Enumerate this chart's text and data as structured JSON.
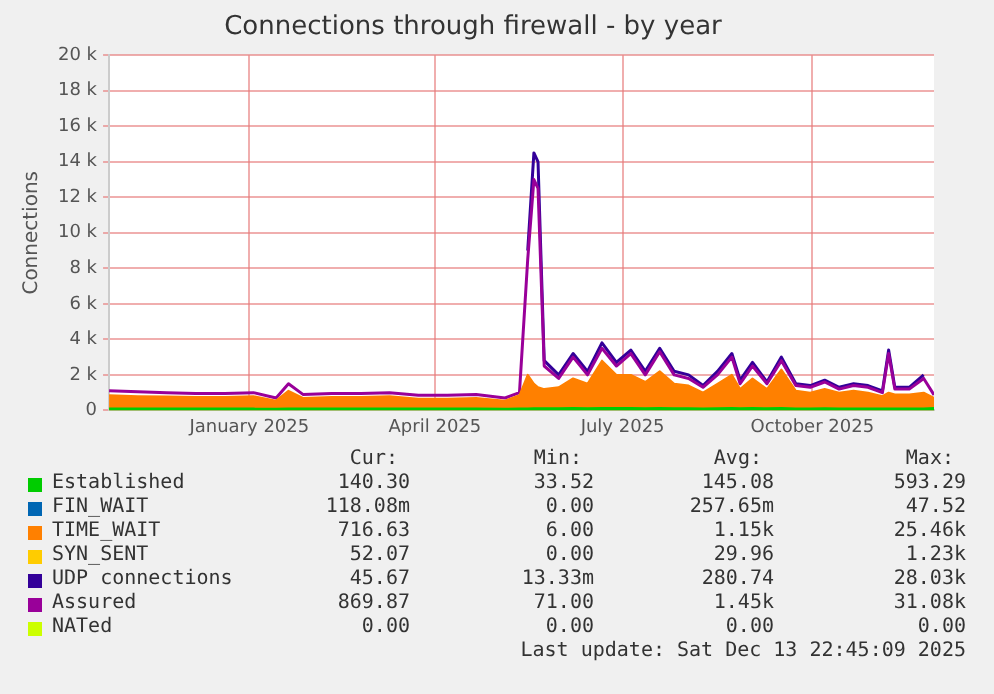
{
  "chart_data": {
    "type": "area",
    "title": "Connections through firewall - by year",
    "ylabel": "Connections",
    "x": [
      "2024-11-08",
      "2024-11-22",
      "2024-12-06",
      "2024-12-20",
      "2025-01-03",
      "2025-01-17",
      "2025-01-28",
      "2025-02-03",
      "2025-02-10",
      "2025-02-24",
      "2025-03-10",
      "2025-03-24",
      "2025-04-07",
      "2025-04-21",
      "2025-05-05",
      "2025-05-19",
      "2025-05-26",
      "2025-05-30",
      "2025-06-02",
      "2025-06-04",
      "2025-06-07",
      "2025-06-14",
      "2025-06-21",
      "2025-06-28",
      "2025-07-05",
      "2025-07-12",
      "2025-07-19",
      "2025-07-26",
      "2025-08-02",
      "2025-08-09",
      "2025-08-16",
      "2025-08-23",
      "2025-08-30",
      "2025-09-06",
      "2025-09-10",
      "2025-09-16",
      "2025-09-23",
      "2025-09-30",
      "2025-10-07",
      "2025-10-14",
      "2025-10-21",
      "2025-10-28",
      "2025-11-04",
      "2025-11-11",
      "2025-11-18",
      "2025-11-21",
      "2025-11-24",
      "2025-12-01",
      "2025-12-08",
      "2025-12-13"
    ],
    "series": [
      {
        "name": "Established",
        "color": "#00cc00",
        "values": [
          100,
          100,
          100,
          100,
          100,
          100,
          90,
          110,
          100,
          100,
          100,
          100,
          100,
          100,
          100,
          90,
          100,
          110,
          120,
          120,
          120,
          120,
          130,
          120,
          130,
          130,
          130,
          120,
          130,
          120,
          120,
          110,
          120,
          130,
          120,
          130,
          120,
          130,
          110,
          110,
          120,
          110,
          110,
          110,
          100,
          110,
          100,
          100,
          110,
          140
        ]
      },
      {
        "name": "FIN_WAIT",
        "color": "#0066b3",
        "values": [
          null,
          null,
          null,
          null,
          null,
          null,
          null,
          null,
          null,
          null,
          null,
          null,
          null,
          null,
          null,
          null,
          null,
          null,
          null,
          null,
          null,
          null,
          null,
          null,
          null,
          null,
          null,
          null,
          null,
          null,
          null,
          null,
          null,
          null,
          null,
          null,
          null,
          null,
          null,
          null,
          null,
          null,
          null,
          null,
          null,
          null,
          null,
          null,
          null,
          null
        ]
      },
      {
        "name": "TIME_WAIT",
        "color": "#ff8000",
        "values": [
          850,
          800,
          780,
          750,
          750,
          800,
          550,
          1100,
          700,
          750,
          750,
          800,
          650,
          650,
          700,
          550,
          850,
          2000,
          1500,
          1300,
          1200,
          1300,
          1800,
          1500,
          2800,
          2000,
          2000,
          1600,
          2200,
          1500,
          1400,
          1000,
          1500,
          2000,
          1200,
          1800,
          1200,
          2300,
          1100,
          1000,
          1200,
          1000,
          1100,
          1000,
          800,
          1000,
          900,
          900,
          1000,
          700
        ]
      },
      {
        "name": "SYN_SENT",
        "color": "#ffcc00",
        "values": [
          null,
          null,
          null,
          null,
          null,
          null,
          null,
          null,
          null,
          null,
          null,
          null,
          null,
          null,
          null,
          null,
          null,
          null,
          null,
          null,
          null,
          null,
          null,
          null,
          null,
          null,
          null,
          null,
          null,
          null,
          null,
          null,
          null,
          null,
          null,
          null,
          null,
          null,
          null,
          null,
          null,
          null,
          null,
          null,
          null,
          null,
          null,
          null,
          null,
          null
        ]
      },
      {
        "name": "UDP connections",
        "color": "#330099",
        "type": "line",
        "values": [
          null,
          null,
          null,
          null,
          null,
          null,
          null,
          null,
          null,
          null,
          null,
          null,
          null,
          null,
          null,
          null,
          null,
          9000,
          14500,
          14000,
          2800,
          2000,
          3200,
          2200,
          3800,
          2700,
          3400,
          2200,
          3500,
          2200,
          2000,
          1400,
          2200,
          3200,
          1700,
          2700,
          1600,
          3000,
          1500,
          1400,
          1700,
          1300,
          1500,
          1400,
          1100,
          3400,
          1300,
          1300,
          2000,
          null
        ]
      },
      {
        "name": "Assured",
        "color": "#990099",
        "type": "line",
        "values": [
          1100,
          1050,
          1000,
          950,
          950,
          1000,
          700,
          1500,
          900,
          950,
          950,
          1000,
          850,
          850,
          900,
          700,
          1000,
          8500,
          13000,
          12500,
          2500,
          1800,
          3000,
          2000,
          3500,
          2500,
          3200,
          2000,
          3300,
          2000,
          1800,
          1300,
          2000,
          3000,
          1500,
          2500,
          1500,
          2800,
          1400,
          1300,
          1600,
          1200,
          1400,
          1300,
          1000,
          3200,
          1200,
          1200,
          1800,
          870
        ]
      },
      {
        "name": "NATed",
        "color": "#ccff00",
        "values": [
          null,
          null,
          null,
          null,
          null,
          null,
          null,
          null,
          null,
          null,
          null,
          null,
          null,
          null,
          null,
          null,
          null,
          null,
          null,
          null,
          null,
          null,
          null,
          null,
          null,
          null,
          null,
          null,
          null,
          null,
          null,
          null,
          null,
          null,
          null,
          null,
          null,
          null,
          null,
          null,
          null,
          null,
          null,
          null,
          null,
          null,
          null,
          null,
          null,
          null
        ]
      }
    ],
    "xlim": [
      "2024-11-08",
      "2025-12-13"
    ],
    "xticks": [
      {
        "value": "2025-01-15",
        "label": "January 2025"
      },
      {
        "value": "2025-04-15",
        "label": "April 2025"
      },
      {
        "value": "2025-07-15",
        "label": "July 2025"
      },
      {
        "value": "2025-10-15",
        "label": "October 2025"
      }
    ],
    "ylim": [
      0,
      20000
    ],
    "yticks": [
      0,
      {
        "value": 2000,
        "label": "2 k"
      },
      {
        "value": 4000,
        "label": "4 k"
      },
      {
        "value": 6000,
        "label": "6 k"
      },
      {
        "value": 8000,
        "label": "8 k"
      },
      {
        "value": 10000,
        "label": "10 k"
      },
      {
        "value": 12000,
        "label": "12 k"
      },
      {
        "value": 14000,
        "label": "14 k"
      },
      {
        "value": 16000,
        "label": "16 k"
      },
      {
        "value": 18000,
        "label": "18 k"
      },
      {
        "value": 20000,
        "label": "20 k"
      }
    ],
    "grid": true,
    "legend": "bottom",
    "annotations": [
      "Cur:",
      "Min:",
      "Avg:",
      "Max:",
      "140.30",
      "33.52",
      "145.08",
      "593.29",
      "118.08m",
      "0.00",
      "257.65m",
      "47.52",
      "716.63",
      "6.00",
      "1.15k",
      "25.46k",
      "52.07",
      "0.00",
      "29.96",
      "1.23k",
      "45.67",
      "13.33m",
      "280.74",
      "28.03k",
      "869.87",
      "71.00",
      "1.45k",
      "31.08k",
      "0.00",
      "0.00",
      "0.00",
      "0.00",
      "Last update: Sat Dec 13 22:45:09 2025"
    ]
  }
}
